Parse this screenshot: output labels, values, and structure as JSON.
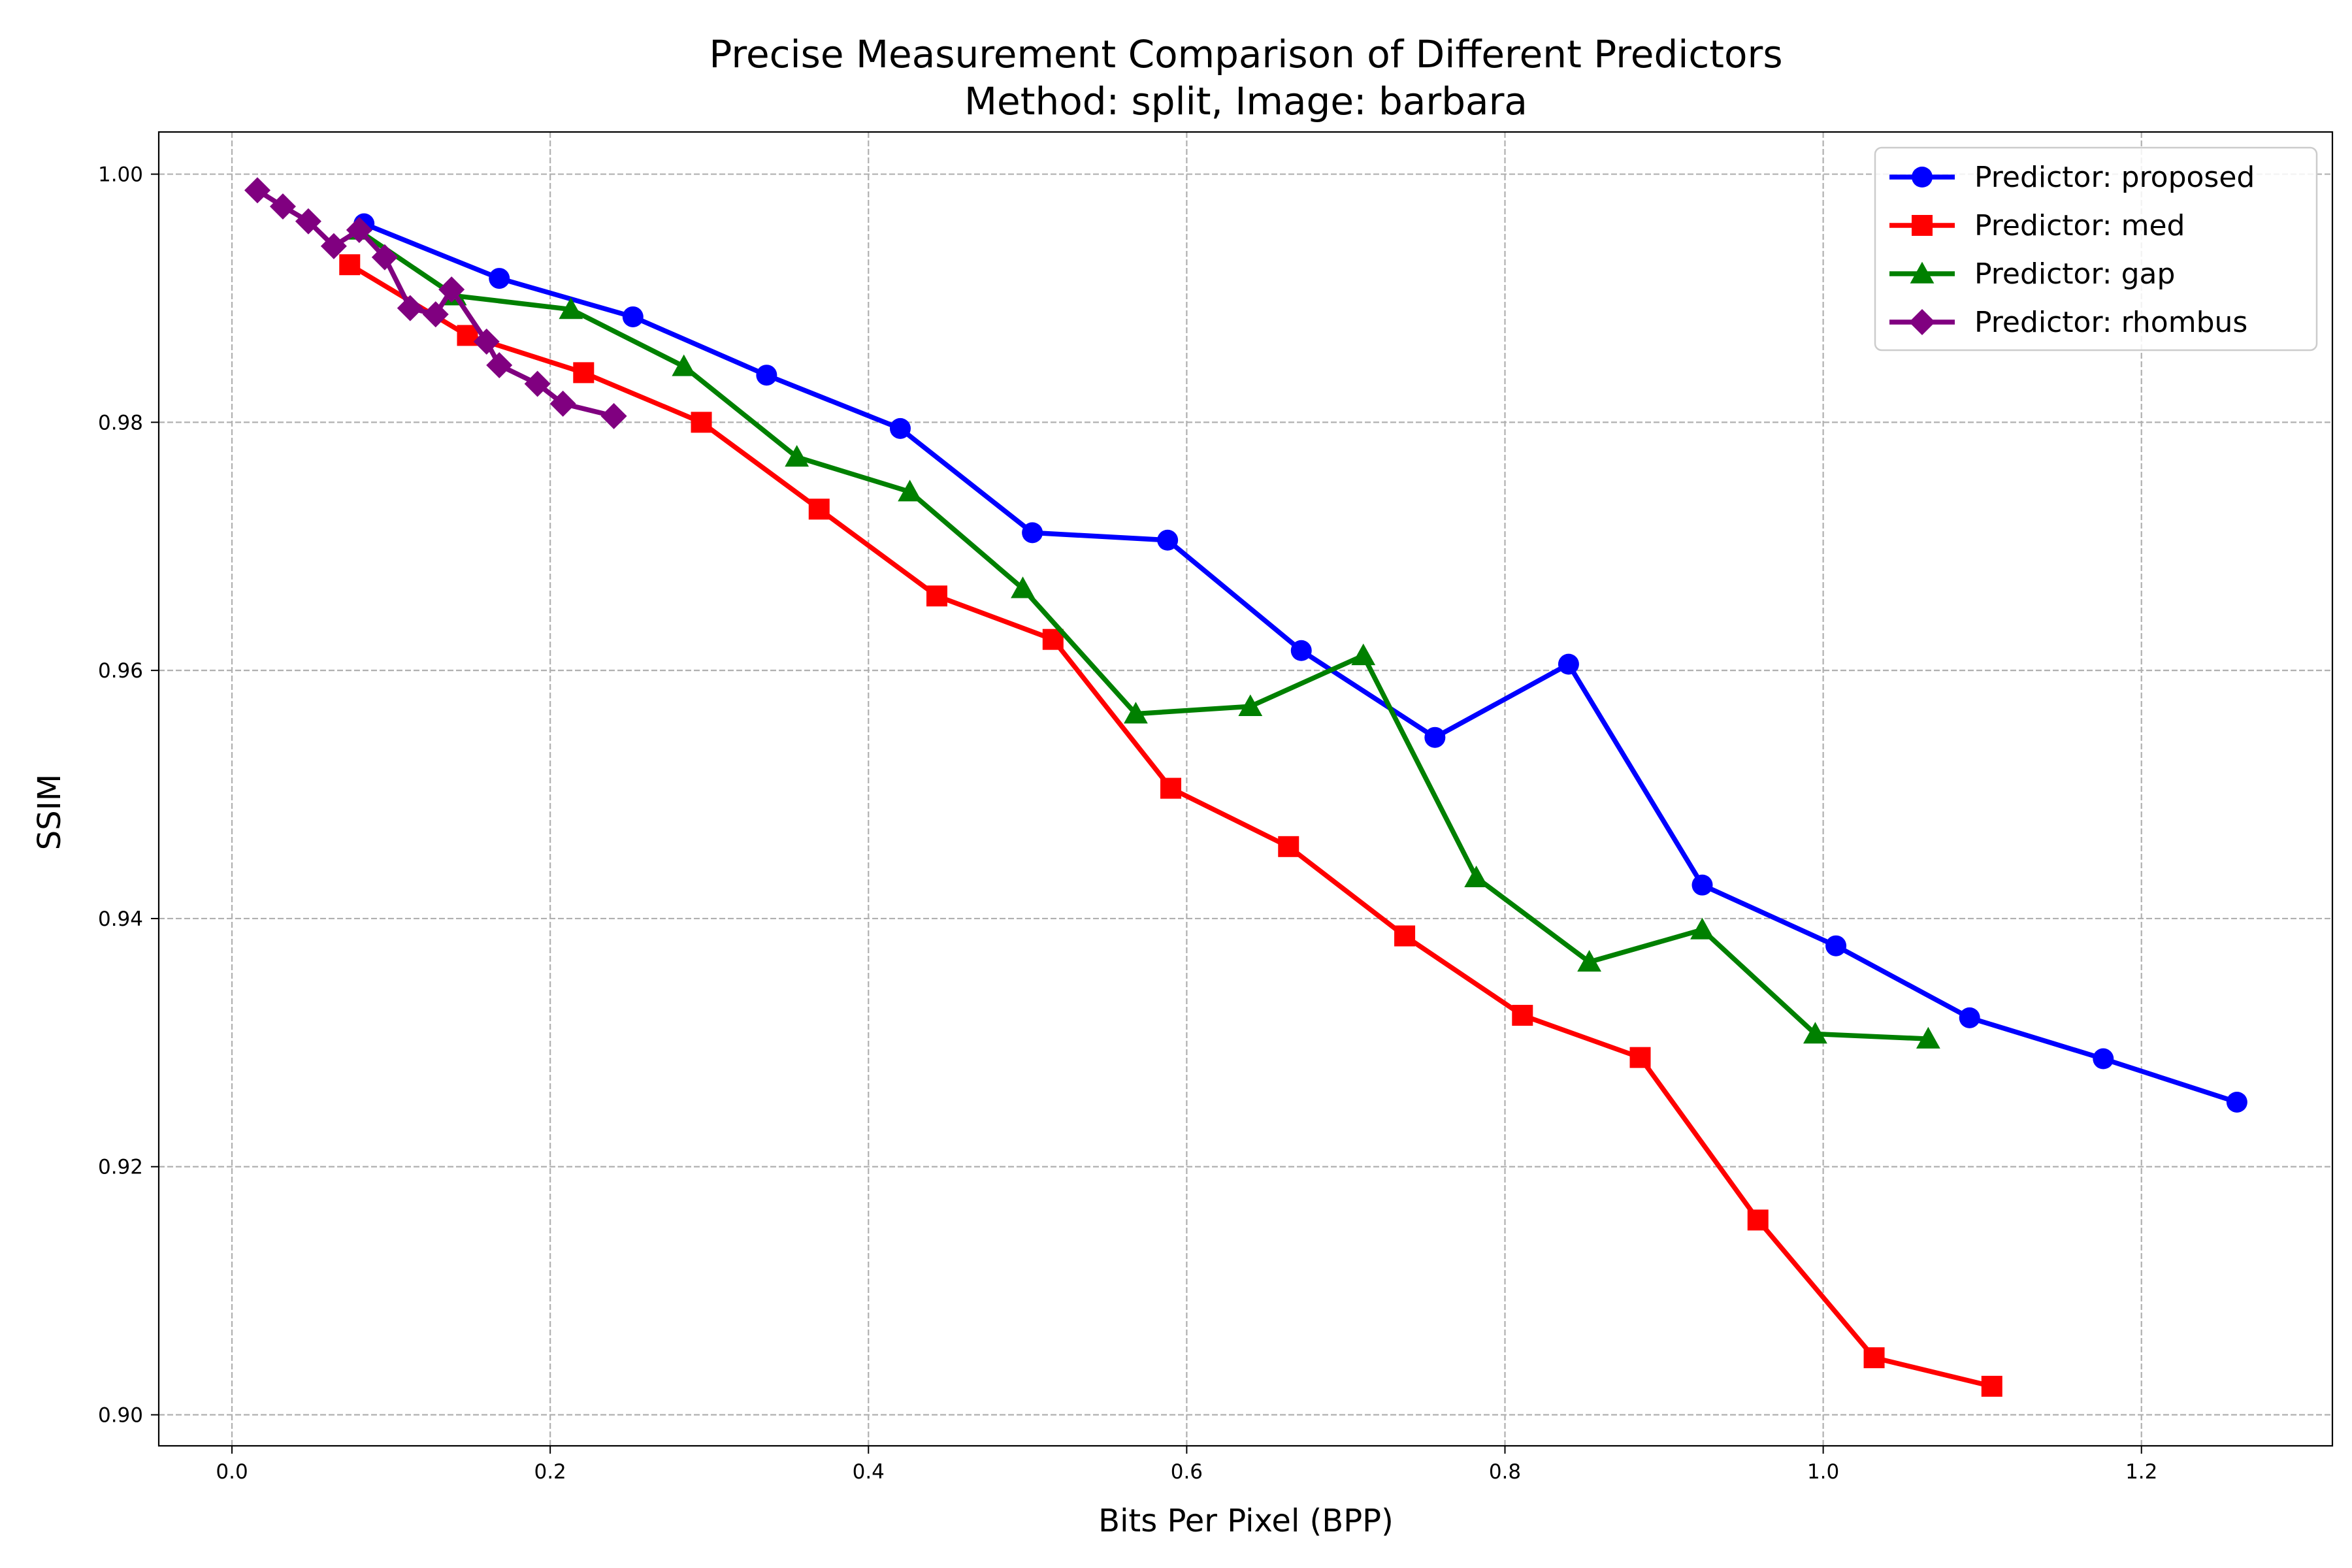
{
  "chart_data": {
    "type": "line",
    "title": "Precise Measurement Comparison of Different Predictors",
    "subtitle": "Method: split, Image: barbara",
    "xlabel": "Bits Per Pixel (BPP)",
    "ylabel": "SSIM",
    "xlim": [
      -0.046,
      1.32
    ],
    "ylim": [
      0.8975,
      1.0034
    ],
    "x_ticks": [
      "0.0",
      "0.2",
      "0.4",
      "0.6",
      "0.8",
      "1.0",
      "1.2"
    ],
    "x_tick_values": [
      0.0,
      0.2,
      0.4,
      0.6,
      0.8,
      1.0,
      1.2
    ],
    "y_ticks": [
      "0.90",
      "0.92",
      "0.94",
      "0.96",
      "0.98",
      "1.00"
    ],
    "y_tick_values": [
      0.9,
      0.92,
      0.94,
      0.96,
      0.98,
      1.0
    ],
    "grid": true,
    "legend_position": "top-right",
    "series": [
      {
        "name": "Predictor: proposed",
        "color": "#0000ff",
        "marker": "circle",
        "points": [
          [
            0.083,
            0.996
          ],
          [
            0.168,
            0.9916
          ],
          [
            0.252,
            0.9885
          ],
          [
            0.336,
            0.9838
          ],
          [
            0.42,
            0.9795
          ],
          [
            0.503,
            0.9711
          ],
          [
            0.588,
            0.9705
          ],
          [
            0.672,
            0.9616
          ],
          [
            0.756,
            0.9546
          ],
          [
            0.84,
            0.9605
          ],
          [
            0.924,
            0.9427
          ],
          [
            1.008,
            0.9378
          ],
          [
            1.092,
            0.932
          ],
          [
            1.176,
            0.9287
          ],
          [
            1.26,
            0.9252
          ]
        ]
      },
      {
        "name": "Predictor: med",
        "color": "#ff0000",
        "marker": "square",
        "points": [
          [
            0.074,
            0.9927
          ],
          [
            0.148,
            0.987
          ],
          [
            0.221,
            0.984
          ],
          [
            0.295,
            0.98
          ],
          [
            0.369,
            0.973
          ],
          [
            0.443,
            0.966
          ],
          [
            0.516,
            0.9625
          ],
          [
            0.59,
            0.9505
          ],
          [
            0.664,
            0.9458
          ],
          [
            0.737,
            0.9386
          ],
          [
            0.811,
            0.9322
          ],
          [
            0.885,
            0.9288
          ],
          [
            0.959,
            0.9157
          ],
          [
            1.032,
            0.9046
          ],
          [
            1.106,
            0.9023
          ]
        ]
      },
      {
        "name": "Predictor: gap",
        "color": "#008000",
        "marker": "triangle",
        "points": [
          [
            0.079,
            0.9955
          ],
          [
            0.14,
            0.9902
          ],
          [
            0.213,
            0.9891
          ],
          [
            0.284,
            0.9845
          ],
          [
            0.355,
            0.9772
          ],
          [
            0.426,
            0.9744
          ],
          [
            0.497,
            0.9666
          ],
          [
            0.568,
            0.9565
          ],
          [
            0.64,
            0.9571
          ],
          [
            0.711,
            0.9612
          ],
          [
            0.782,
            0.9433
          ],
          [
            0.853,
            0.9365
          ],
          [
            0.924,
            0.9391
          ],
          [
            0.995,
            0.9307
          ],
          [
            1.066,
            0.9303
          ]
        ]
      },
      {
        "name": "Predictor: rhombus",
        "color": "#800080",
        "marker": "diamond",
        "points": [
          [
            0.016,
            0.9987
          ],
          [
            0.032,
            0.9974
          ],
          [
            0.048,
            0.9962
          ],
          [
            0.064,
            0.9942
          ],
          [
            0.08,
            0.9955
          ],
          [
            0.096,
            0.9933
          ],
          [
            0.112,
            0.9892
          ],
          [
            0.128,
            0.9887
          ],
          [
            0.138,
            0.9907
          ],
          [
            0.16,
            0.9865
          ],
          [
            0.168,
            0.9846
          ],
          [
            0.192,
            0.9831
          ],
          [
            0.208,
            0.9815
          ],
          [
            0.24,
            0.9805
          ]
        ]
      }
    ]
  }
}
